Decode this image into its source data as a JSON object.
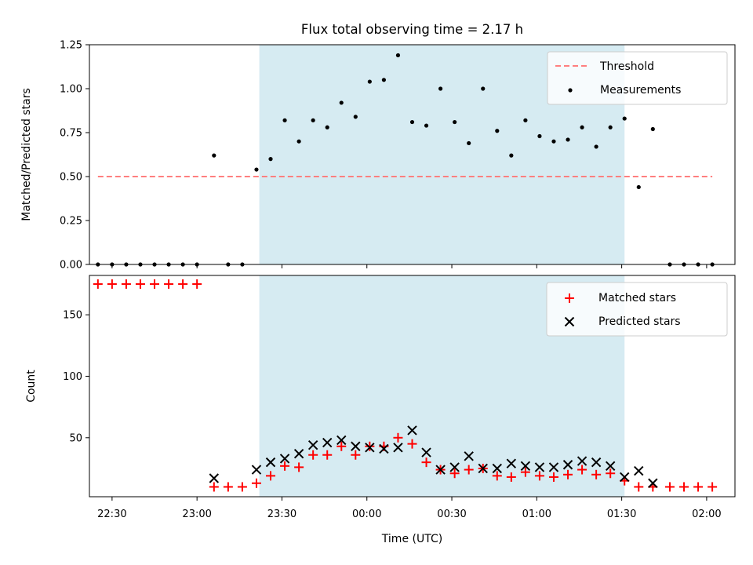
{
  "chart_data": [
    {
      "type": "scatter",
      "title": "Flux total observing time = 2.17 h",
      "xlabel": "",
      "ylabel": "Matched/Predicted stars",
      "xlim": [
        "22:22",
        "02:10"
      ],
      "ylim": [
        0,
        1.25
      ],
      "yticks": [
        "0.00",
        "0.25",
        "0.50",
        "0.75",
        "1.00",
        "1.25"
      ],
      "x_tick_labels_shown": false,
      "grid": false,
      "legend_position": "upper right",
      "shaded_interval": {
        "from": "23:22",
        "to": "01:31",
        "color": "#add8e6"
      },
      "threshold": {
        "name": "Threshold",
        "value": 0.5,
        "from": "22:25",
        "to": "02:02",
        "color": "#ff7f7f",
        "style": "dashed"
      },
      "series": [
        {
          "name": "Measurements",
          "marker": "dot",
          "color": "#000000",
          "points": [
            [
              "22:25",
              0.0
            ],
            [
              "22:30",
              0.0
            ],
            [
              "22:35",
              0.0
            ],
            [
              "22:40",
              0.0
            ],
            [
              "22:45",
              0.0
            ],
            [
              "22:50",
              0.0
            ],
            [
              "22:55",
              0.0
            ],
            [
              "23:00",
              0.0
            ],
            [
              "23:06",
              0.62
            ],
            [
              "23:11",
              0.0
            ],
            [
              "23:16",
              0.0
            ],
            [
              "23:21",
              0.54
            ],
            [
              "23:26",
              0.6
            ],
            [
              "23:31",
              0.82
            ],
            [
              "23:36",
              0.7
            ],
            [
              "23:41",
              0.82
            ],
            [
              "23:46",
              0.78
            ],
            [
              "23:51",
              0.92
            ],
            [
              "23:56",
              0.84
            ],
            [
              "00:01",
              1.04
            ],
            [
              "00:06",
              1.05
            ],
            [
              "00:11",
              1.19
            ],
            [
              "00:16",
              0.81
            ],
            [
              "00:21",
              0.79
            ],
            [
              "00:26",
              1.0
            ],
            [
              "00:31",
              0.81
            ],
            [
              "00:36",
              0.69
            ],
            [
              "00:41",
              1.0
            ],
            [
              "00:46",
              0.76
            ],
            [
              "00:51",
              0.62
            ],
            [
              "00:56",
              0.82
            ],
            [
              "01:01",
              0.73
            ],
            [
              "01:06",
              0.7
            ],
            [
              "01:11",
              0.71
            ],
            [
              "01:16",
              0.78
            ],
            [
              "01:21",
              0.67
            ],
            [
              "01:26",
              0.78
            ],
            [
              "01:31",
              0.83
            ],
            [
              "01:36",
              0.44
            ],
            [
              "01:41",
              0.77
            ],
            [
              "01:47",
              0.0
            ],
            [
              "01:52",
              0.0
            ],
            [
              "01:57",
              0.0
            ],
            [
              "02:02",
              0.0
            ]
          ]
        }
      ],
      "legend": [
        "Threshold",
        "Measurements"
      ]
    },
    {
      "type": "scatter",
      "title": "",
      "xlabel": "Time (UTC)",
      "ylabel": "Count",
      "xlim": [
        "22:22",
        "02:10"
      ],
      "ylim": [
        2,
        182
      ],
      "yticks": [
        "50",
        "100",
        "150"
      ],
      "xticks": [
        "22:30",
        "23:00",
        "23:30",
        "00:00",
        "00:30",
        "01:00",
        "01:30",
        "02:00"
      ],
      "grid": false,
      "legend_position": "upper right",
      "shaded_interval": {
        "from": "23:22",
        "to": "01:31",
        "color": "#add8e6"
      },
      "series": [
        {
          "name": "Matched stars",
          "marker": "plus",
          "color": "#ff0000",
          "points": [
            [
              "22:25",
              175
            ],
            [
              "22:30",
              175
            ],
            [
              "22:35",
              175
            ],
            [
              "22:40",
              175
            ],
            [
              "22:45",
              175
            ],
            [
              "22:50",
              175
            ],
            [
              "22:55",
              175
            ],
            [
              "23:00",
              175
            ],
            [
              "23:06",
              10
            ],
            [
              "23:11",
              10
            ],
            [
              "23:16",
              10
            ],
            [
              "23:21",
              13
            ],
            [
              "23:26",
              19
            ],
            [
              "23:31",
              27
            ],
            [
              "23:36",
              26
            ],
            [
              "23:41",
              36
            ],
            [
              "23:46",
              36
            ],
            [
              "23:51",
              43
            ],
            [
              "23:56",
              36
            ],
            [
              "00:01",
              43
            ],
            [
              "00:06",
              43
            ],
            [
              "00:11",
              50
            ],
            [
              "00:16",
              45
            ],
            [
              "00:21",
              30
            ],
            [
              "00:26",
              24
            ],
            [
              "00:31",
              21
            ],
            [
              "00:36",
              24
            ],
            [
              "00:41",
              25
            ],
            [
              "00:46",
              19
            ],
            [
              "00:51",
              18
            ],
            [
              "00:56",
              22
            ],
            [
              "01:01",
              19
            ],
            [
              "01:06",
              18
            ],
            [
              "01:11",
              20
            ],
            [
              "01:16",
              24
            ],
            [
              "01:21",
              20
            ],
            [
              "01:26",
              21
            ],
            [
              "01:31",
              15
            ],
            [
              "01:36",
              10
            ],
            [
              "01:41",
              10
            ],
            [
              "01:47",
              10
            ],
            [
              "01:52",
              10
            ],
            [
              "01:57",
              10
            ],
            [
              "02:02",
              10
            ]
          ]
        },
        {
          "name": "Predicted stars",
          "marker": "x",
          "color": "#000000",
          "points": [
            [
              "23:06",
              17
            ],
            [
              "23:21",
              24
            ],
            [
              "23:26",
              30
            ],
            [
              "23:31",
              33
            ],
            [
              "23:36",
              37
            ],
            [
              "23:41",
              44
            ],
            [
              "23:46",
              46
            ],
            [
              "23:51",
              48
            ],
            [
              "23:56",
              43
            ],
            [
              "00:01",
              42
            ],
            [
              "00:06",
              41
            ],
            [
              "00:11",
              42
            ],
            [
              "00:16",
              56
            ],
            [
              "00:21",
              38
            ],
            [
              "00:26",
              24
            ],
            [
              "00:31",
              26
            ],
            [
              "00:36",
              35
            ],
            [
              "00:41",
              25
            ],
            [
              "00:46",
              25
            ],
            [
              "00:51",
              29
            ],
            [
              "00:56",
              27
            ],
            [
              "01:01",
              26
            ],
            [
              "01:06",
              26
            ],
            [
              "01:11",
              28
            ],
            [
              "01:16",
              31
            ],
            [
              "01:21",
              30
            ],
            [
              "01:26",
              27
            ],
            [
              "01:31",
              18
            ],
            [
              "01:36",
              23
            ],
            [
              "01:41",
              13
            ]
          ]
        }
      ],
      "legend": [
        "Matched stars",
        "Predicted stars"
      ]
    }
  ]
}
